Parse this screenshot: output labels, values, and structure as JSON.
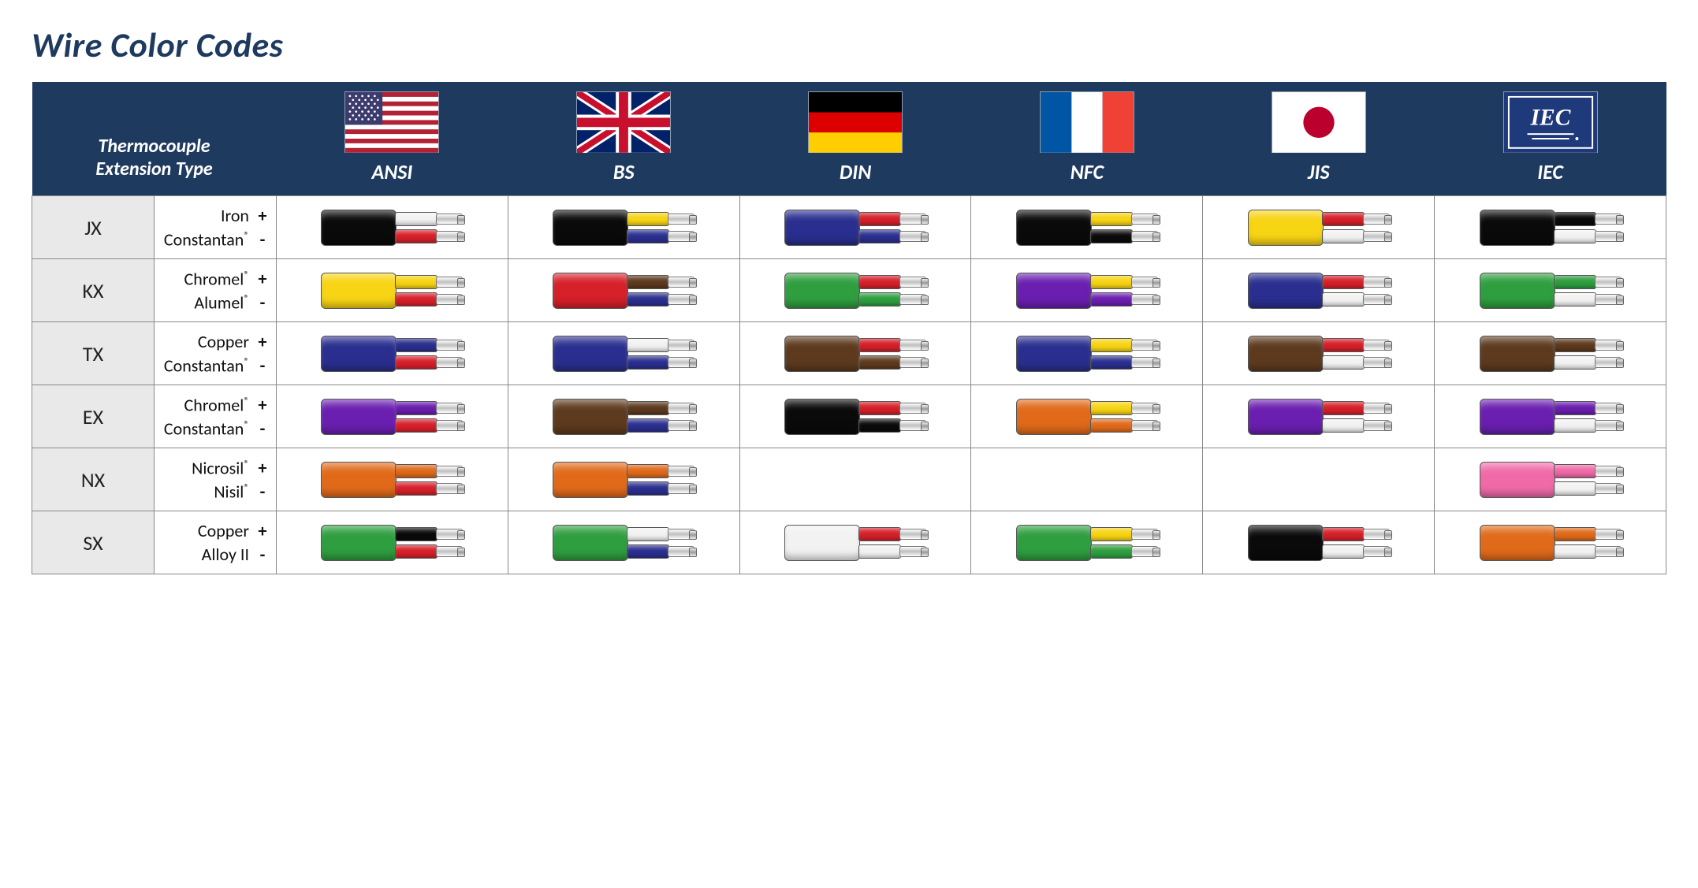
{
  "title": "Wire Color Codes",
  "header_label": "Thermocouple\nExtension Type",
  "standards": [
    {
      "code": "ANSI",
      "flag": "us"
    },
    {
      "code": "BS",
      "flag": "uk"
    },
    {
      "code": "DIN",
      "flag": "de"
    },
    {
      "code": "NFC",
      "flag": "fr"
    },
    {
      "code": "JIS",
      "flag": "jp"
    },
    {
      "code": "IEC",
      "flag": "iec"
    }
  ],
  "palette": {
    "black": "#0a0a0a",
    "white": "#f2f2f2",
    "red": "#d6202a",
    "yellow": "#f7d414",
    "blue": "#2a2f8f",
    "navy": "#10256b",
    "green": "#2e9e3f",
    "brown": "#5d3a1e",
    "purple": "#6a1fb0",
    "orange": "#e06a1a",
    "pink": "#f06aa8",
    "grey": "#c9c9c9"
  },
  "rows": [
    {
      "type": "JX",
      "pos_material": "Iron",
      "neg_material": "Constantan®",
      "cells": {
        "ANSI": {
          "jacket": "black",
          "pos": "white",
          "neg": "red"
        },
        "BS": {
          "jacket": "black",
          "pos": "yellow",
          "neg": "blue"
        },
        "DIN": {
          "jacket": "blue",
          "pos": "red",
          "neg": "blue"
        },
        "NFC": {
          "jacket": "black",
          "pos": "yellow",
          "neg": "black"
        },
        "JIS": {
          "jacket": "yellow",
          "pos": "red",
          "neg": "white"
        },
        "IEC": {
          "jacket": "black",
          "pos": "black",
          "neg": "white"
        }
      }
    },
    {
      "type": "KX",
      "pos_material": "Chromel®",
      "neg_material": "Alumel®",
      "cells": {
        "ANSI": {
          "jacket": "yellow",
          "pos": "yellow",
          "neg": "red"
        },
        "BS": {
          "jacket": "red",
          "pos": "brown",
          "neg": "blue"
        },
        "DIN": {
          "jacket": "green",
          "pos": "red",
          "neg": "green"
        },
        "NFC": {
          "jacket": "purple",
          "pos": "yellow",
          "neg": "purple"
        },
        "JIS": {
          "jacket": "blue",
          "pos": "red",
          "neg": "white"
        },
        "IEC": {
          "jacket": "green",
          "pos": "green",
          "neg": "white"
        }
      }
    },
    {
      "type": "TX",
      "pos_material": "Copper",
      "neg_material": "Constantan®",
      "cells": {
        "ANSI": {
          "jacket": "blue",
          "pos": "blue",
          "neg": "red"
        },
        "BS": {
          "jacket": "blue",
          "pos": "white",
          "neg": "blue"
        },
        "DIN": {
          "jacket": "brown",
          "pos": "red",
          "neg": "brown"
        },
        "NFC": {
          "jacket": "blue",
          "pos": "yellow",
          "neg": "blue"
        },
        "JIS": {
          "jacket": "brown",
          "pos": "red",
          "neg": "white"
        },
        "IEC": {
          "jacket": "brown",
          "pos": "brown",
          "neg": "white"
        }
      }
    },
    {
      "type": "EX",
      "pos_material": "Chromel®",
      "neg_material": "Constantan®",
      "cells": {
        "ANSI": {
          "jacket": "purple",
          "pos": "purple",
          "neg": "red"
        },
        "BS": {
          "jacket": "brown",
          "pos": "brown",
          "neg": "blue"
        },
        "DIN": {
          "jacket": "black",
          "pos": "red",
          "neg": "black"
        },
        "NFC": {
          "jacket": "orange",
          "pos": "yellow",
          "neg": "orange"
        },
        "JIS": {
          "jacket": "purple",
          "pos": "red",
          "neg": "white"
        },
        "IEC": {
          "jacket": "purple",
          "pos": "purple",
          "neg": "white"
        }
      }
    },
    {
      "type": "NX",
      "pos_material": "Nicrosil®",
      "neg_material": "Nisil®",
      "cells": {
        "ANSI": {
          "jacket": "orange",
          "pos": "orange",
          "neg": "red"
        },
        "BS": {
          "jacket": "orange",
          "pos": "orange",
          "neg": "blue"
        },
        "DIN": null,
        "NFC": null,
        "JIS": null,
        "IEC": {
          "jacket": "pink",
          "pos": "pink",
          "neg": "white"
        }
      }
    },
    {
      "type": "SX",
      "pos_material": "Copper",
      "neg_material": "Alloy II",
      "cells": {
        "ANSI": {
          "jacket": "green",
          "pos": "black",
          "neg": "red"
        },
        "BS": {
          "jacket": "green",
          "pos": "white",
          "neg": "blue"
        },
        "DIN": {
          "jacket": "white",
          "pos": "red",
          "neg": "white"
        },
        "NFC": {
          "jacket": "green",
          "pos": "yellow",
          "neg": "green"
        },
        "JIS": {
          "jacket": "black",
          "pos": "red",
          "neg": "white"
        },
        "IEC": {
          "jacket": "orange",
          "pos": "orange",
          "neg": "white"
        }
      }
    }
  ],
  "flag_svgs": {
    "us": "<svg viewBox='0 0 120 78'><rect width='120' height='78' fill='#b22234'/><g fill='#fff'><rect y='6' width='120' height='6'/><rect y='18' width='120' height='6'/><rect y='30' width='120' height='6'/><rect y='42' width='120' height='6'/><rect y='54' width='120' height='6'/><rect y='66' width='120' height='6'/></g><rect width='48' height='42' fill='#3c3b6e'/><g fill='#fff'><circle cx='6' cy='5' r='1.4'/><circle cx='14' cy='5' r='1.4'/><circle cx='22' cy='5' r='1.4'/><circle cx='30' cy='5' r='1.4'/><circle cx='38' cy='5' r='1.4'/><circle cx='10' cy='10' r='1.4'/><circle cx='18' cy='10' r='1.4'/><circle cx='26' cy='10' r='1.4'/><circle cx='34' cy='10' r='1.4'/><circle cx='42' cy='10' r='1.4'/><circle cx='6' cy='15' r='1.4'/><circle cx='14' cy='15' r='1.4'/><circle cx='22' cy='15' r='1.4'/><circle cx='30' cy='15' r='1.4'/><circle cx='38' cy='15' r='1.4'/><circle cx='10' cy='20' r='1.4'/><circle cx='18' cy='20' r='1.4'/><circle cx='26' cy='20' r='1.4'/><circle cx='34' cy='20' r='1.4'/><circle cx='42' cy='20' r='1.4'/><circle cx='6' cy='25' r='1.4'/><circle cx='14' cy='25' r='1.4'/><circle cx='22' cy='25' r='1.4'/><circle cx='30' cy='25' r='1.4'/><circle cx='38' cy='25' r='1.4'/><circle cx='10' cy='30' r='1.4'/><circle cx='18' cy='30' r='1.4'/><circle cx='26' cy='30' r='1.4'/><circle cx='34' cy='30' r='1.4'/><circle cx='42' cy='30' r='1.4'/><circle cx='6' cy='35' r='1.4'/><circle cx='14' cy='35' r='1.4'/><circle cx='22' cy='35' r='1.4'/><circle cx='30' cy='35' r='1.4'/><circle cx='38' cy='35' r='1.4'/></g></svg>",
    "uk": "<svg viewBox='0 0 120 78'><rect width='120' height='78' fill='#012169'/><path d='M0,0 L120,78 M120,0 L0,78' stroke='#fff' stroke-width='14'/><path d='M0,0 L120,78 M120,0 L0,78' stroke='#c8102e' stroke-width='8'/><rect x='50' width='20' height='78' fill='#fff'/><rect y='29' width='120' height='20' fill='#fff'/><rect x='54' width='12' height='78' fill='#c8102e'/><rect y='33' width='120' height='12' fill='#c8102e'/></svg>",
    "de": "<svg viewBox='0 0 120 78'><rect width='120' height='26' fill='#000'/><rect y='26' width='120' height='26' fill='#dd0000'/><rect y='52' width='120' height='26' fill='#ffce00'/></svg>",
    "fr": "<svg viewBox='0 0 120 78'><rect width='40' height='78' fill='#0055a4'/><rect x='40' width='40' height='78' fill='#fff'/><rect x='80' width='40' height='78' fill='#ef4135'/></svg>",
    "jp": "<svg viewBox='0 0 120 78'><rect width='120' height='78' fill='#fff'/><circle cx='60' cy='39' r='20' fill='#bc002d'/></svg>",
    "iec": "<svg viewBox='0 0 120 78'><rect width='120' height='78' fill='#1f3a7a'/><rect x='6' y='6' width='108' height='66' fill='none' stroke='#fff' stroke-width='2'/><text x='60' y='42' text-anchor='middle' fill='#fff' font-family='Georgia,serif' font-size='30' font-weight='600'>IEC</text><line x1='30' y1='54' x2='90' y2='54' stroke='#fff' stroke-width='2'/><line x1='36' y1='60' x2='84' y2='60' stroke='#fff' stroke-width='2'/><circle cx='94' cy='60' r='2' fill='#fff'/></svg>"
  }
}
